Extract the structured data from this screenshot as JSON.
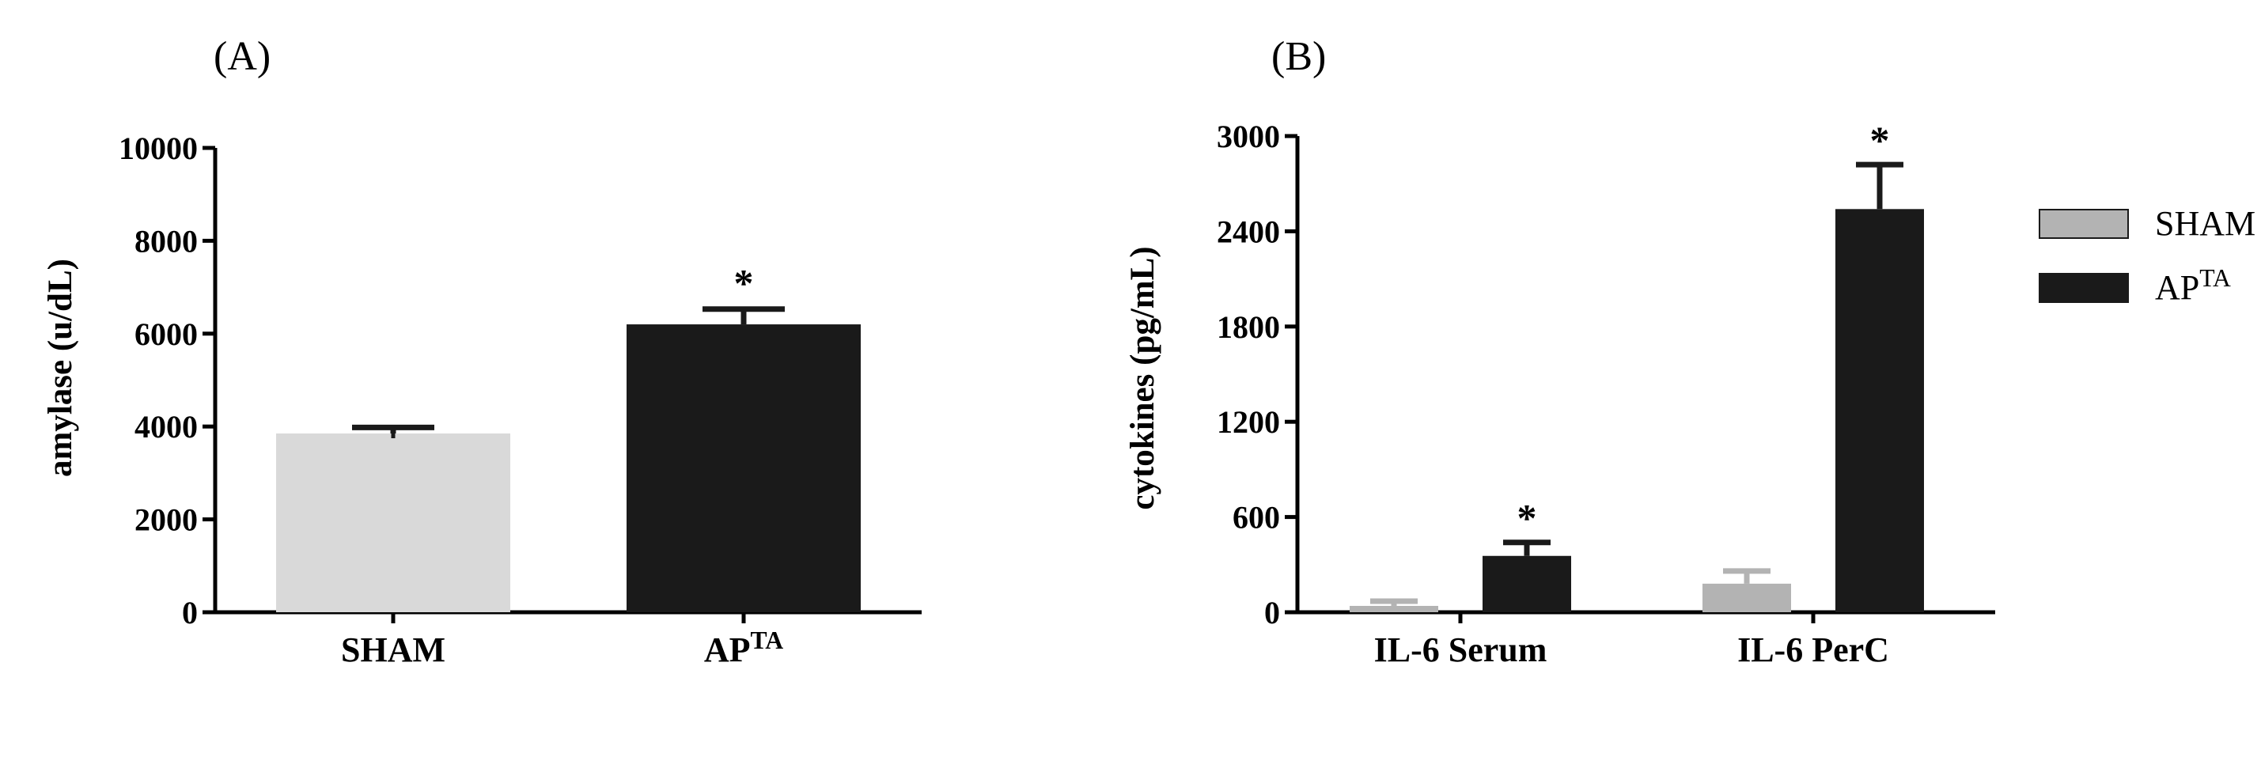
{
  "chart_data": [
    {
      "panel": "(A)",
      "type": "bar",
      "categories": [
        "SHAM",
        "AP"
      ],
      "category_superscripts": [
        "",
        "TA"
      ],
      "values": [
        3850,
        6200
      ],
      "errors": [
        130,
        330
      ],
      "colors": [
        "#d9d9d9",
        "#1a1a1a"
      ],
      "error_colors": [
        "#1a1a1a",
        "#1a1a1a"
      ],
      "significance": [
        "",
        "*"
      ],
      "ylabel": "amylase (u/dL)",
      "ylim": [
        0,
        10000
      ],
      "yticks": [
        0,
        2000,
        4000,
        6000,
        8000,
        10000
      ],
      "ytick_labels": [
        "0",
        "2000",
        "4000",
        "6000",
        "8000",
        "10000"
      ]
    },
    {
      "panel": "(B)",
      "type": "bar",
      "categories": [
        "IL-6 Serum",
        "IL-6 PerC"
      ],
      "series": [
        {
          "name": "SHAM",
          "color": "#b3b3b3",
          "values": [
            40,
            180
          ],
          "errors": [
            30,
            80
          ],
          "significance": [
            "",
            ""
          ]
        },
        {
          "name": "AP",
          "name_superscript": "TA",
          "color": "#1a1a1a",
          "values": [
            355,
            2540
          ],
          "errors": [
            85,
            280
          ],
          "significance": [
            "*",
            "*"
          ]
        }
      ],
      "ylabel": "cytokines (pg/mL)",
      "ylim": [
        0,
        3000
      ],
      "yticks": [
        0,
        600,
        1200,
        1800,
        2400,
        3000
      ],
      "ytick_labels": [
        "0",
        "600",
        "1200",
        "1800",
        "2400",
        "3000"
      ],
      "legend_position": "right"
    }
  ]
}
